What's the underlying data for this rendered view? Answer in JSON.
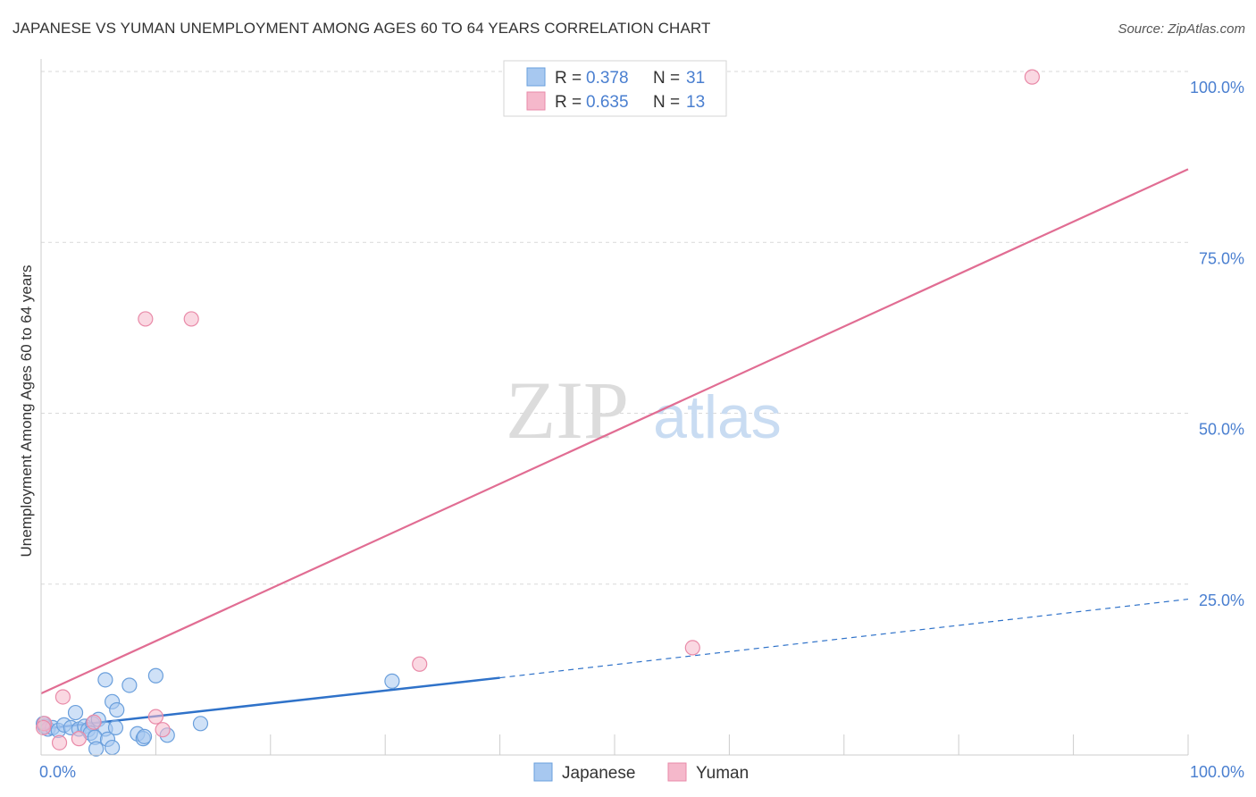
{
  "header": {
    "title": "JAPANESE VS YUMAN UNEMPLOYMENT AMONG AGES 60 TO 64 YEARS CORRELATION CHART",
    "source": "Source: ZipAtlas.com"
  },
  "watermark": {
    "part1": "ZIP",
    "part2": "atlas"
  },
  "colors": {
    "japanese_fill": "#a7c8f0",
    "japanese_stroke": "#6a9fdc",
    "japanese_line": "#2f72c9",
    "yuman_fill": "#f5b8cb",
    "yuman_stroke": "#e98aa8",
    "yuman_line": "#e16d93",
    "tick_label": "#4a7fd0",
    "grid": "#d9d9d9"
  },
  "chart_data": {
    "type": "scatter",
    "title": "JAPANESE VS YUMAN UNEMPLOYMENT AMONG AGES 60 TO 64 YEARS CORRELATION CHART",
    "xlabel": "",
    "ylabel": "Unemployment Among Ages 60 to 64 years",
    "xlim": [
      0,
      100
    ],
    "ylim": [
      0,
      100
    ],
    "x_tick_labels": [
      "0.0%",
      "100.0%"
    ],
    "y_ticks": [
      25,
      50,
      75,
      100
    ],
    "y_tick_labels": [
      "25.0%",
      "50.0%",
      "75.0%",
      "100.0%"
    ],
    "grid": true,
    "legend": {
      "position": "top-center",
      "entries": [
        {
          "r_label": "R = ",
          "r_value": "0.378",
          "n_label": "N = ",
          "n_value": "31"
        },
        {
          "r_label": "R = ",
          "r_value": "0.635",
          "n_label": "N = ",
          "n_value": "13"
        }
      ]
    },
    "bottom_legend": [
      "Japanese",
      "Yuman"
    ],
    "series": [
      {
        "name": "Japanese",
        "points": [
          [
            0.3,
            4.2
          ],
          [
            0.6,
            3.8
          ],
          [
            1.0,
            4.0
          ],
          [
            1.5,
            3.6
          ],
          [
            2.0,
            4.4
          ],
          [
            2.6,
            4.0
          ],
          [
            3.0,
            6.2
          ],
          [
            3.3,
            3.8
          ],
          [
            3.8,
            4.2
          ],
          [
            4.1,
            3.7
          ],
          [
            4.5,
            4.6
          ],
          [
            4.3,
            3.2
          ],
          [
            5.0,
            5.2
          ],
          [
            5.6,
            3.8
          ],
          [
            4.7,
            2.6
          ],
          [
            4.8,
            0.9
          ],
          [
            5.8,
            2.3
          ],
          [
            6.2,
            1.1
          ],
          [
            6.5,
            4.0
          ],
          [
            5.6,
            11.0
          ],
          [
            6.2,
            7.8
          ],
          [
            6.6,
            6.6
          ],
          [
            7.7,
            10.2
          ],
          [
            8.4,
            3.1
          ],
          [
            8.9,
            2.4
          ],
          [
            9.0,
            2.7
          ],
          [
            10.0,
            11.6
          ],
          [
            11.0,
            2.9
          ],
          [
            13.9,
            4.6
          ],
          [
            30.6,
            10.8
          ],
          [
            0.2,
            4.6
          ]
        ],
        "trend": {
          "x0": 0,
          "y0": 3.8,
          "x1": 40,
          "y1": 11.3,
          "dashed_to_x": 100,
          "dashed_to_y": 22.8
        }
      },
      {
        "name": "Yuman",
        "points": [
          [
            0.3,
            4.6
          ],
          [
            1.6,
            1.8
          ],
          [
            1.9,
            8.5
          ],
          [
            3.3,
            2.4
          ],
          [
            4.6,
            4.8
          ],
          [
            9.1,
            63.8
          ],
          [
            10.0,
            5.6
          ],
          [
            10.6,
            3.7
          ],
          [
            13.1,
            63.8
          ],
          [
            33.0,
            13.3
          ],
          [
            56.8,
            15.7
          ],
          [
            86.4,
            99.2
          ],
          [
            0.2,
            4.0
          ]
        ],
        "trend": {
          "x0": 0,
          "y0": 9.0,
          "x1": 100,
          "y1": 85.7
        }
      }
    ]
  }
}
